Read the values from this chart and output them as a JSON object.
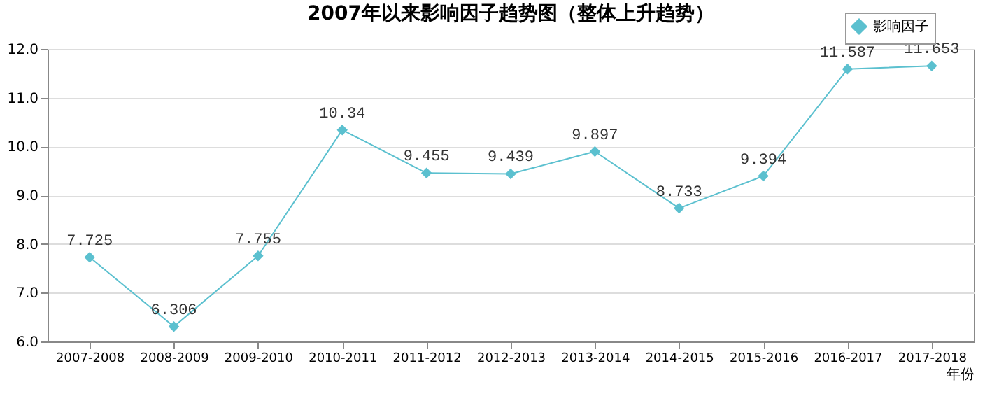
{
  "chart_data": {
    "type": "line",
    "title": "2007年以来影响因子趋势图（整体上升趋势）",
    "xlabel": "年份",
    "categories": [
      "2007-2008",
      "2008-2009",
      "2009-2010",
      "2010-2011",
      "2011-2012",
      "2012-2013",
      "2013-2014",
      "2014-2015",
      "2015-2016",
      "2016-2017",
      "2017-2018"
    ],
    "series": [
      {
        "name": "影响因子",
        "color": "#5bc0cf",
        "values": [
          7.725,
          6.306,
          7.755,
          10.34,
          9.455,
          9.439,
          9.897,
          8.733,
          9.394,
          11.587,
          11.653
        ]
      }
    ],
    "ylim": [
      6.0,
      12.0
    ],
    "yticks": [
      {
        "value": 6,
        "label": "6.0"
      },
      {
        "value": 7,
        "label": "7.0"
      },
      {
        "value": 8,
        "label": "8.0"
      },
      {
        "value": 9,
        "label": "9.0"
      },
      {
        "value": 10,
        "label": "10.0"
      },
      {
        "value": 11,
        "label": "11.0"
      },
      {
        "value": 12,
        "label": "12.0"
      }
    ],
    "grid": "y",
    "legend": "top right",
    "marker": "diamond",
    "line_style": "solid",
    "data_labels": true
  }
}
